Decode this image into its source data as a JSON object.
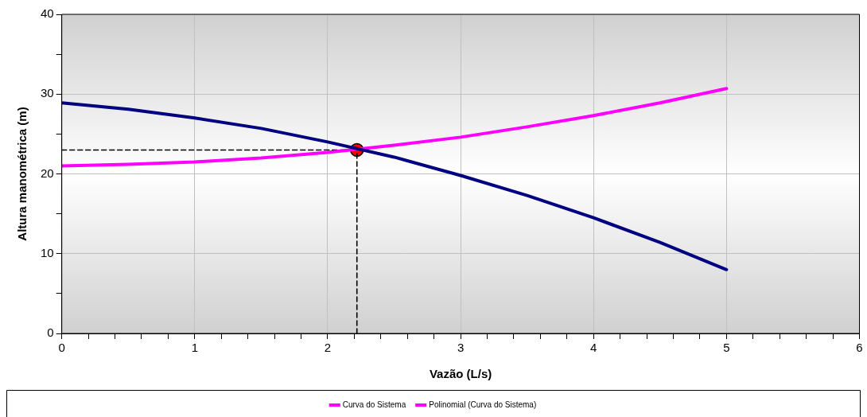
{
  "chart_data": {
    "type": "line",
    "xlabel": "Vazão (L/s)",
    "ylabel": "Altura manométrica (m)",
    "xlim": [
      0,
      6
    ],
    "ylim": [
      0,
      40
    ],
    "xticks": [
      0,
      {
        "value": 0.2,
        "label": null
      },
      {
        "value": 0.4,
        "label": null
      },
      {
        "value": 0.6,
        "label": null
      },
      {
        "value": 0.8,
        "label": null
      },
      1,
      {
        "value": 1.2,
        "label": null
      },
      {
        "value": 1.4,
        "label": null
      },
      {
        "value": 1.6,
        "label": null
      },
      {
        "value": 1.8,
        "label": null
      },
      2,
      {
        "value": 2.2,
        "label": null
      },
      {
        "value": 2.4,
        "label": null
      },
      {
        "value": 2.6,
        "label": null
      },
      {
        "value": 2.8,
        "label": null
      },
      3,
      {
        "value": 3.2,
        "label": null
      },
      {
        "value": 3.4,
        "label": null
      },
      {
        "value": 3.6,
        "label": null
      },
      {
        "value": 3.8,
        "label": null
      },
      4,
      {
        "value": 4.2,
        "label": null
      },
      {
        "value": 4.4,
        "label": null
      },
      {
        "value": 4.6,
        "label": null
      },
      {
        "value": 4.8,
        "label": null
      },
      5,
      {
        "value": 5.2,
        "label": null
      },
      {
        "value": 5.4,
        "label": null
      },
      {
        "value": 5.6,
        "label": null
      },
      {
        "value": 5.8,
        "label": null
      },
      6
    ],
    "yticks": [
      0,
      {
        "value": 5,
        "label": null
      },
      10,
      {
        "value": 15,
        "label": null
      },
      20,
      {
        "value": 25,
        "label": null
      },
      30,
      {
        "value": 35,
        "label": null
      },
      40
    ],
    "grid": true,
    "legend": "bottom",
    "marker": "none",
    "series": [
      {
        "color": "#000080",
        "x": [
          0,
          0.5,
          1,
          1.5,
          2,
          2.5,
          3,
          3.5,
          4,
          4.5,
          5
        ],
        "values": [
          28.9,
          28.1,
          27.0,
          25.7,
          24.0,
          22.1,
          19.8,
          17.3,
          14.5,
          11.4,
          8.0
        ]
      },
      {
        "name": "Curva do Sistema",
        "color": "#ff00ff"
      },
      {
        "name": "Polinomial (Curva do Sistema)",
        "color": "#ff00ff",
        "x": [
          0,
          0.5,
          1,
          1.5,
          2,
          2.5,
          3,
          3.5,
          4,
          4.5,
          5
        ],
        "values": [
          21.0,
          21.2,
          21.5,
          22.0,
          22.7,
          23.6,
          24.6,
          25.9,
          27.3,
          28.9,
          30.7
        ]
      },
      {
        "type": "line",
        "line_style": "dashed",
        "color": "#000000",
        "x": [
          0,
          2.22
        ],
        "values": [
          23,
          23
        ]
      },
      {
        "type": "line",
        "line_style": "dashed",
        "color": "#000000",
        "x": [
          2.22,
          2.22
        ],
        "values": [
          0,
          23
        ]
      },
      {
        "type": "scatter",
        "marker": "circle",
        "color": "#ff0000",
        "x": [
          2.22
        ],
        "values": [
          23
        ]
      }
    ]
  }
}
